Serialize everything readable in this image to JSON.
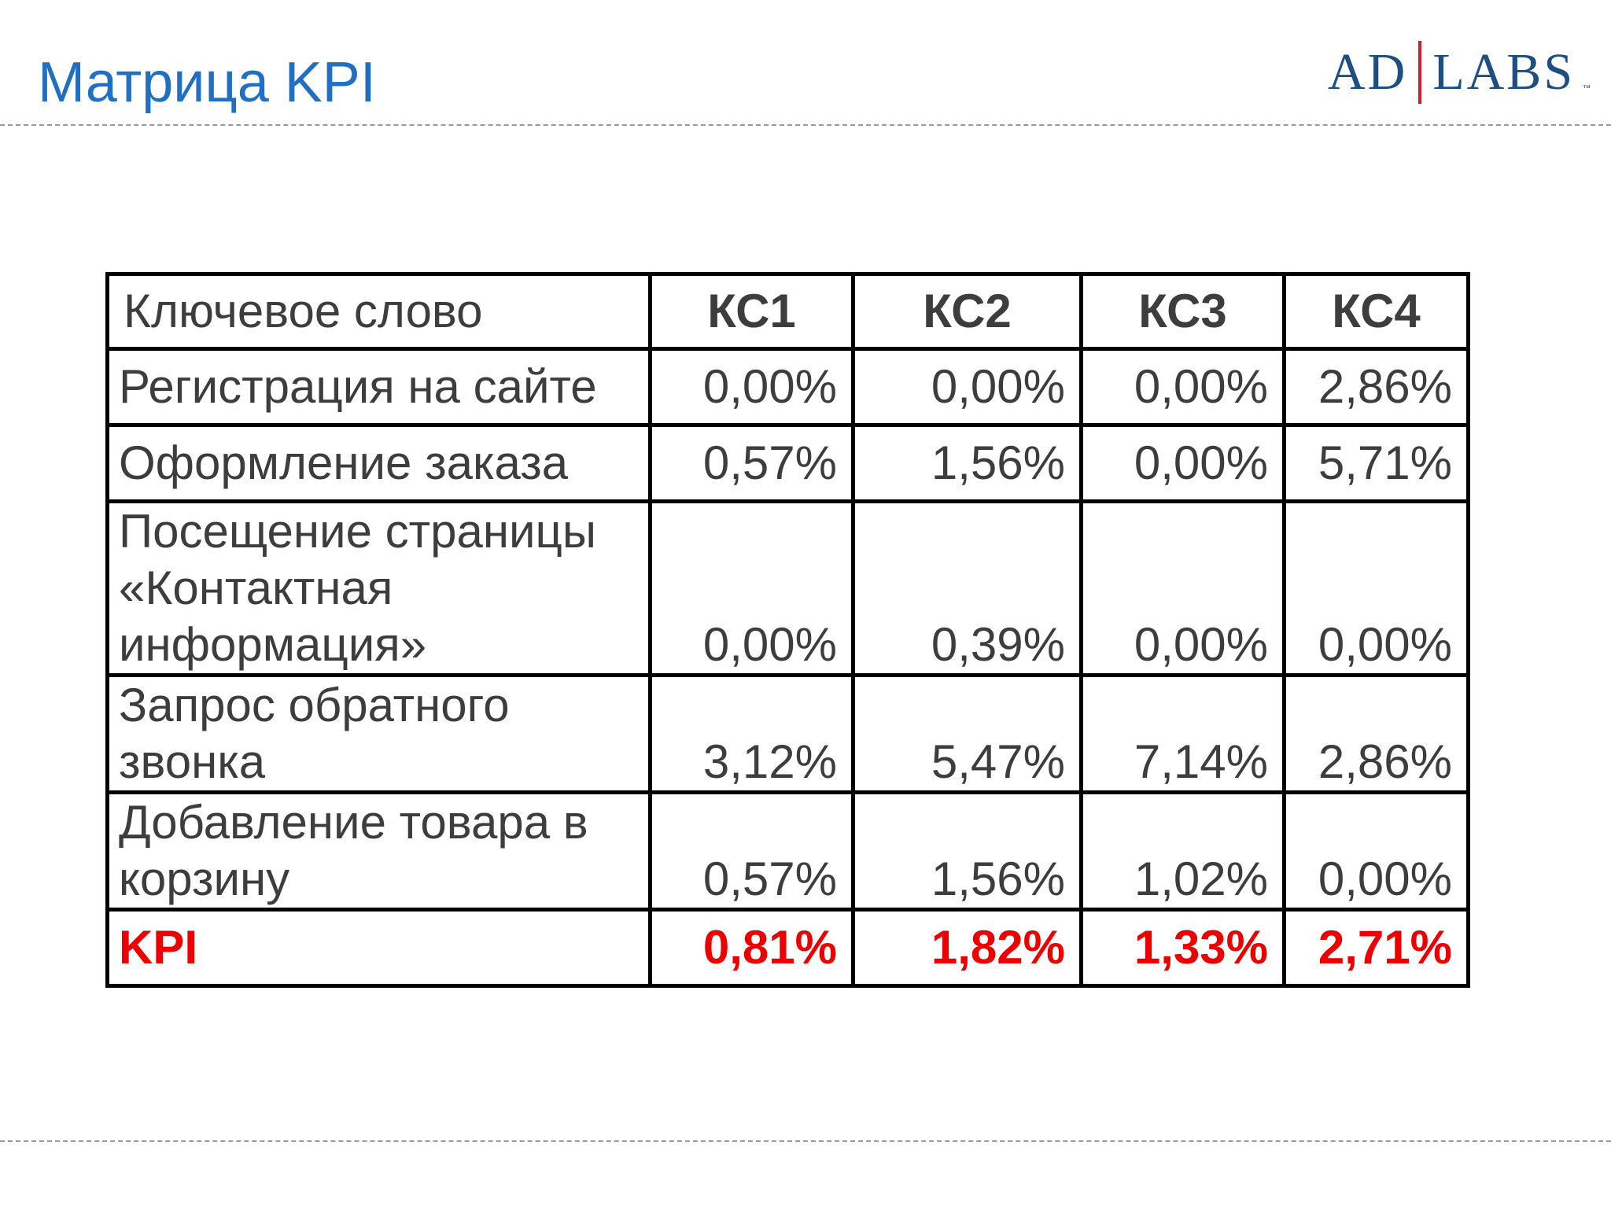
{
  "slide": {
    "title": "Матрица KPI"
  },
  "logo": {
    "left": "AD",
    "right": "LABS",
    "tm": "™"
  },
  "table": {
    "columns": [
      "Ключевое слово",
      "КС1",
      "КС2",
      "КС3",
      "КС4"
    ],
    "rows": [
      {
        "label": "Регистрация на сайте",
        "values": [
          "0,00%",
          "0,00%",
          "0,00%",
          "2,86%"
        ]
      },
      {
        "label": "Оформление заказа",
        "values": [
          "0,57%",
          "1,56%",
          "0,00%",
          "5,71%"
        ]
      },
      {
        "label": "Посещение страницы «Контактная информация»",
        "values": [
          "0,00%",
          "0,39%",
          "0,00%",
          "0,00%"
        ]
      },
      {
        "label": "Запрос обратного звонка",
        "values": [
          "3,12%",
          "5,47%",
          "7,14%",
          "2,86%"
        ]
      },
      {
        "label": "Добавление товара в корзину",
        "values": [
          "0,57%",
          "1,56%",
          "1,02%",
          "0,00%"
        ]
      }
    ],
    "kpi": {
      "label": "KPI",
      "values": [
        "0,81%",
        "1,82%",
        "1,33%",
        "2,71%"
      ]
    }
  },
  "colors": {
    "title": "#1f6fc4",
    "logo_text": "#1d4f82",
    "logo_divider": "#d01f2b",
    "kpi_text": "#ee0000",
    "cell_text": "#3d3d3d"
  }
}
